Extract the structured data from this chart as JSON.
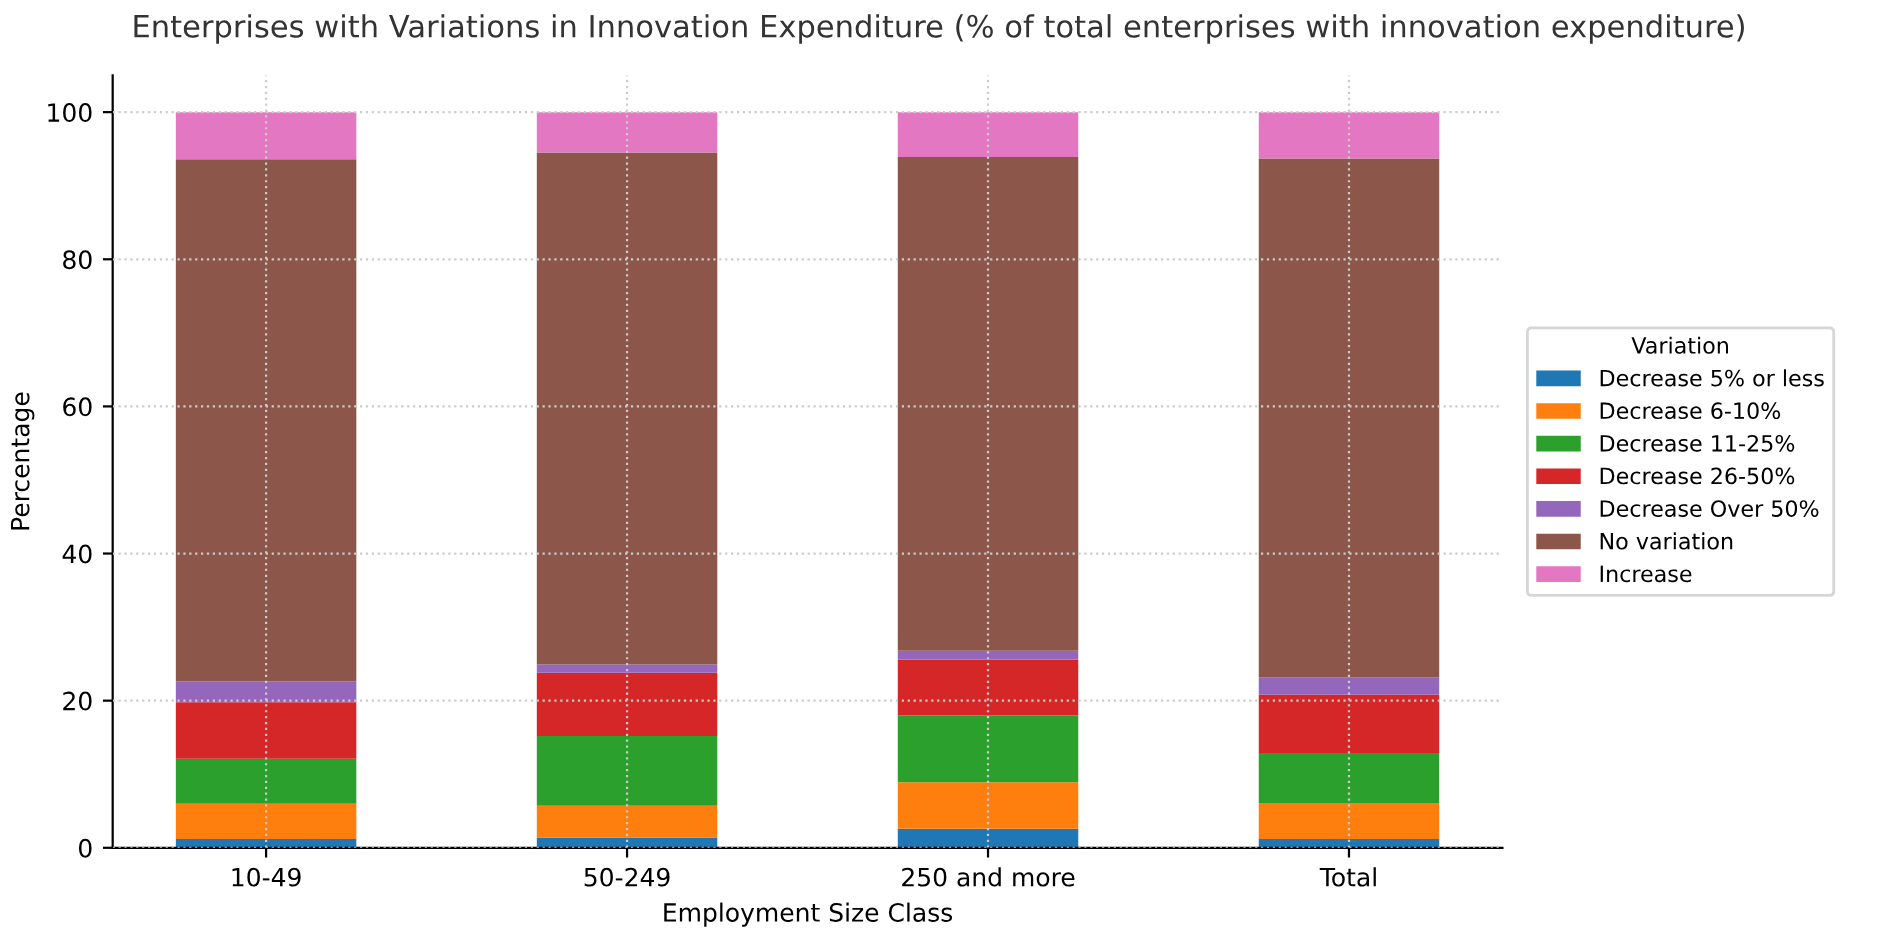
{
  "chart_data": {
    "type": "bar",
    "stacked": true,
    "title": "Enterprises with Variations in Innovation Expenditure (% of total enterprises with innovation expenditure)",
    "xlabel": "Employment Size Class",
    "ylabel": "Percentage",
    "legend_title": "Variation",
    "legend": "right",
    "grid": true,
    "categories": [
      "10-49",
      "50-249",
      "250 and more",
      "Total"
    ],
    "ylim": [
      0,
      105
    ],
    "yticks": [
      0,
      20,
      40,
      60,
      80,
      100
    ],
    "series": [
      {
        "name": "Decrease 5% or less",
        "color": "#1f77b4",
        "values": [
          1.2,
          1.4,
          2.6,
          1.2
        ]
      },
      {
        "name": "Decrease 6-10%",
        "color": "#ff7f0e",
        "values": [
          4.8,
          4.3,
          6.3,
          4.9
        ]
      },
      {
        "name": "Decrease 11-25%",
        "color": "#2ca02c",
        "values": [
          6.1,
          9.5,
          9.1,
          6.8
        ]
      },
      {
        "name": "Decrease 26-50%",
        "color": "#d62728",
        "values": [
          7.7,
          8.6,
          7.6,
          7.9
        ]
      },
      {
        "name": "Decrease Over 50%",
        "color": "#9467bd",
        "values": [
          2.8,
          1.1,
          1.2,
          2.4
        ]
      },
      {
        "name": "No variation",
        "color": "#8c564b",
        "values": [
          71.0,
          69.6,
          67.1,
          70.5
        ]
      },
      {
        "name": "Increase",
        "color": "#e377c2",
        "values": [
          6.4,
          5.5,
          6.1,
          6.3
        ]
      }
    ]
  }
}
